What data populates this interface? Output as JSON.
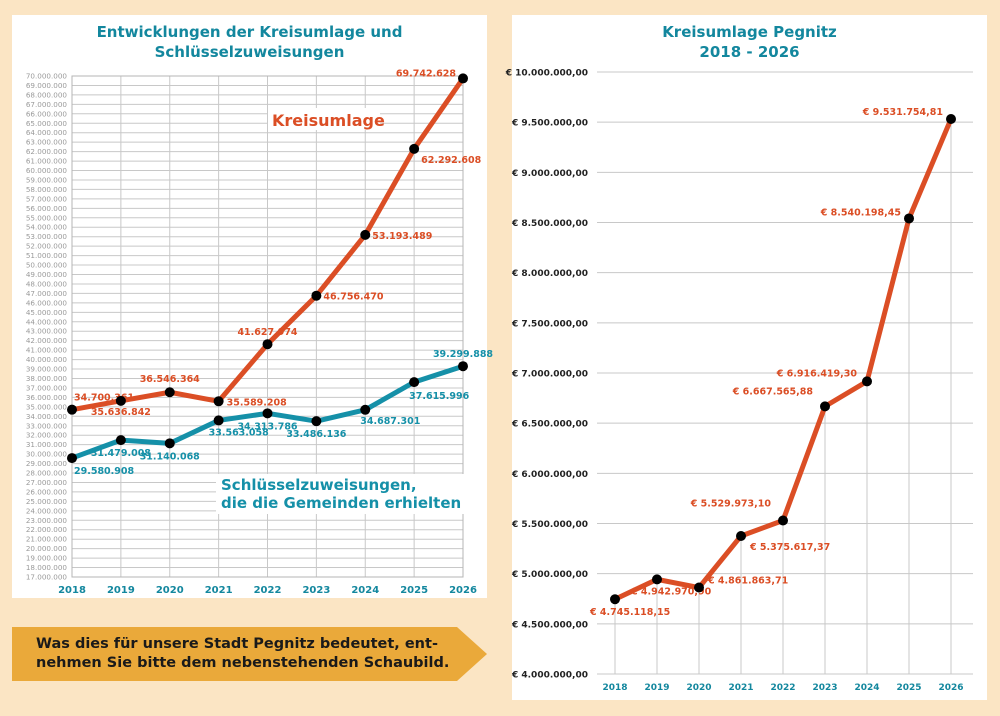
{
  "colors": {
    "background": "#fbe5c4",
    "title": "#13879e",
    "kreisumlage": "#db4e25",
    "schluessel": "#1590a8",
    "marker": "#000000",
    "banner": "#eaa93a",
    "grid": "#c8c8c8",
    "axis_label_left": "#9a9a9a",
    "axis_label_right": "#222222",
    "year_label": "#13879e"
  },
  "banner": {
    "text": "Was dies für unsere Stadt Pegnitz bedeutet, ent-\nnehmen Sie bitte dem nebenstehenden Schaubild."
  },
  "chart_data": [
    {
      "type": "line",
      "title": "Entwicklungen der Kreisumlage und\nSchlüsselzuweisungen",
      "xlabel": "",
      "ylabel": "",
      "categories": [
        "2018",
        "2019",
        "2020",
        "2021",
        "2022",
        "2023",
        "2024",
        "2025",
        "2026"
      ],
      "ylim": [
        17000000,
        70000000
      ],
      "ytick_step": 1000000,
      "ytick_labels": [
        "70.000.000",
        "69.000.000",
        "68.000.000",
        "67.000.000",
        "66.000.000",
        "65.000.000",
        "64.000.000",
        "63.000.000",
        "62.000.000",
        "61.000.000",
        "60.000.000",
        "59.000.000",
        "58.000.000",
        "57.000.000",
        "56.000.000",
        "55.000.000",
        "54.000.000",
        "53.000.000",
        "52.000.000",
        "51.000.000",
        "50.000.000",
        "49.000.000",
        "48.000.000",
        "47.000.000",
        "46.000.000",
        "45.000.000",
        "44.000.000",
        "43.000.000",
        "42.000.000",
        "41.000.000",
        "40.000.000",
        "39.000.000",
        "38.000.000",
        "37.000.000",
        "36.000.000",
        "35.000.000",
        "34.000.000",
        "33.000.000",
        "32.000.000",
        "31.000.000",
        "30.000.000",
        "29.000.000",
        "28.000.000",
        "27.000.000",
        "26.000.000",
        "25.000.000",
        "24.000.000",
        "23.000.000",
        "22.000.000",
        "21.000.000",
        "20.000.000",
        "19.000.000",
        "18.000.000",
        "17.000.000"
      ],
      "grid": true,
      "series": [
        {
          "name": "Kreisumlage",
          "label": "Kreisumlage",
          "color": "#db4e25",
          "values": [
            34700361,
            35636842,
            36546364,
            35589208,
            41627974,
            46756470,
            53193489,
            62292608,
            69742628
          ],
          "value_labels": [
            "34.700.361",
            "35.636.842",
            "36.546.364",
            "35.589.208",
            "41.627.974",
            "46.756.470",
            "53.193.489",
            "62.292.608",
            "69.742.628"
          ]
        },
        {
          "name": "Schlüsselzuweisungen",
          "label": "Schlüsselzuweisungen,\ndie die Gemeinden erhielten",
          "color": "#1590a8",
          "values": [
            29580908,
            31479008,
            31140068,
            33563058,
            34313786,
            33486136,
            34687301,
            37615996,
            39299888
          ],
          "value_labels": [
            "29.580.908",
            "31.479.008",
            "31.140.068",
            "33.563.058",
            "34.313.786",
            "33.486.136",
            "34.687.301",
            "37.615.996",
            "39.299.888"
          ]
        }
      ]
    },
    {
      "type": "line",
      "title": "Kreisumlage Pegnitz\n2018 - 2026",
      "xlabel": "",
      "ylabel": "",
      "categories": [
        "2018",
        "2019",
        "2020",
        "2021",
        "2022",
        "2023",
        "2024",
        "2025",
        "2026"
      ],
      "ylim": [
        4000000,
        10000000
      ],
      "ytick_step": 500000,
      "ytick_labels": [
        "€ 10.000.000,00",
        "€ 9.500.000,00",
        "€ 9.000.000,00",
        "€ 8.500.000,00",
        "€ 8.000.000,00",
        "€ 7.500.000,00",
        "€ 7.000.000,00",
        "€ 6.500.000,00",
        "€ 6.000.000,00",
        "€ 5.500.000,00",
        "€ 5.000.000,00",
        "€ 4.500.000,00",
        "€ 4.000.000,00"
      ],
      "grid": true,
      "series": [
        {
          "name": "Kreisumlage Pegnitz",
          "color": "#db4e25",
          "values": [
            4745118.15,
            4942970.9,
            4861863.71,
            5375617.37,
            5529973.1,
            6667565.88,
            6916419.3,
            8540198.45,
            9531754.81
          ],
          "value_labels": [
            "€ 4.745.118,15",
            "€ 4.942.970,90",
            "€ 4.861.863,71",
            "€ 5.375.617,37",
            "€ 5.529.973,10",
            "€ 6.667.565,88",
            "€ 6.916.419,30",
            "€ 8.540.198,45",
            "€ 9.531.754,81"
          ]
        }
      ]
    }
  ]
}
